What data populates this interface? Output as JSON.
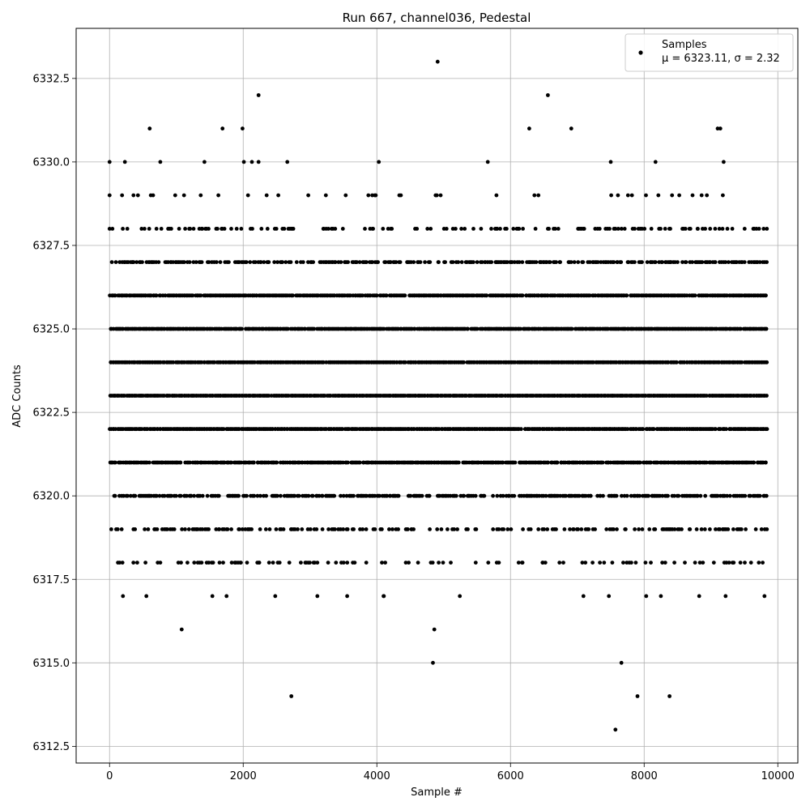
{
  "chart_data": {
    "type": "scatter",
    "title": "Run 667, channel036, Pedestal",
    "xlabel": "Sample #",
    "ylabel": "ADC Counts",
    "xlim": [
      -500,
      10300
    ],
    "ylim": [
      6312.0,
      6334.0
    ],
    "xticks": [
      0,
      2000,
      4000,
      6000,
      8000,
      10000
    ],
    "xtick_labels": [
      "0",
      "2000",
      "4000",
      "6000",
      "8000",
      "10000"
    ],
    "yticks": [
      6312.5,
      6315.0,
      6317.5,
      6320.0,
      6322.5,
      6325.0,
      6327.5,
      6330.0,
      6332.5
    ],
    "ytick_labels": [
      "6312.5",
      "6315.0",
      "6317.5",
      "6320.0",
      "6322.5",
      "6325.0",
      "6327.5",
      "6330.0",
      "6332.5"
    ],
    "grid": true,
    "legend": {
      "placement": "top-right",
      "label_line1": "Samples",
      "label_line2": "μ = 6323.11, σ = 2.32"
    },
    "marker_color": "#000000",
    "series": [
      {
        "name": "Samples",
        "n_samples": 9830,
        "mean": 6323.11,
        "sigma": 2.32,
        "sample_points": [
          [
            0,
            6330
          ],
          [
            0,
            6329
          ],
          [
            0,
            6328
          ],
          [
            200,
            6317
          ],
          [
            230,
            6330
          ],
          [
            600,
            6331
          ],
          [
            760,
            6330
          ],
          [
            1080,
            6316
          ],
          [
            1420,
            6330
          ],
          [
            1690,
            6331
          ],
          [
            1990,
            6331
          ],
          [
            2010,
            6330
          ],
          [
            2130,
            6330
          ],
          [
            2230,
            6332
          ],
          [
            2230,
            6330
          ],
          [
            2660,
            6330
          ],
          [
            2720,
            6314
          ],
          [
            3110,
            6317
          ],
          [
            4030,
            6330
          ],
          [
            4100,
            6317
          ],
          [
            4840,
            6315
          ],
          [
            4860,
            6316
          ],
          [
            4910,
            6333
          ],
          [
            5660,
            6330
          ],
          [
            6280,
            6331
          ],
          [
            6560,
            6332
          ],
          [
            6910,
            6331
          ],
          [
            7500,
            6330
          ],
          [
            7570,
            6313
          ],
          [
            7660,
            6315
          ],
          [
            7900,
            6314
          ],
          [
            8170,
            6330
          ],
          [
            8380,
            6314
          ],
          [
            9100,
            6331
          ],
          [
            9140,
            6331
          ],
          [
            9190,
            6330
          ],
          [
            9800,
            6317
          ]
        ],
        "level_densities": [
          {
            "y": 6329,
            "density": 0.07
          },
          {
            "y": 6328,
            "density": 0.26
          },
          {
            "y": 6327,
            "density": 0.58
          },
          {
            "y": 6326,
            "density": 0.92
          },
          {
            "y": 6325,
            "density": 0.97
          },
          {
            "y": 6324,
            "density": 0.98
          },
          {
            "y": 6323,
            "density": 0.99
          },
          {
            "y": 6322,
            "density": 0.97
          },
          {
            "y": 6321,
            "density": 0.88
          },
          {
            "y": 6320,
            "density": 0.62
          },
          {
            "y": 6319,
            "density": 0.4
          },
          {
            "y": 6318,
            "density": 0.21
          },
          {
            "y": 6317,
            "density": 0.02
          }
        ]
      }
    ]
  }
}
